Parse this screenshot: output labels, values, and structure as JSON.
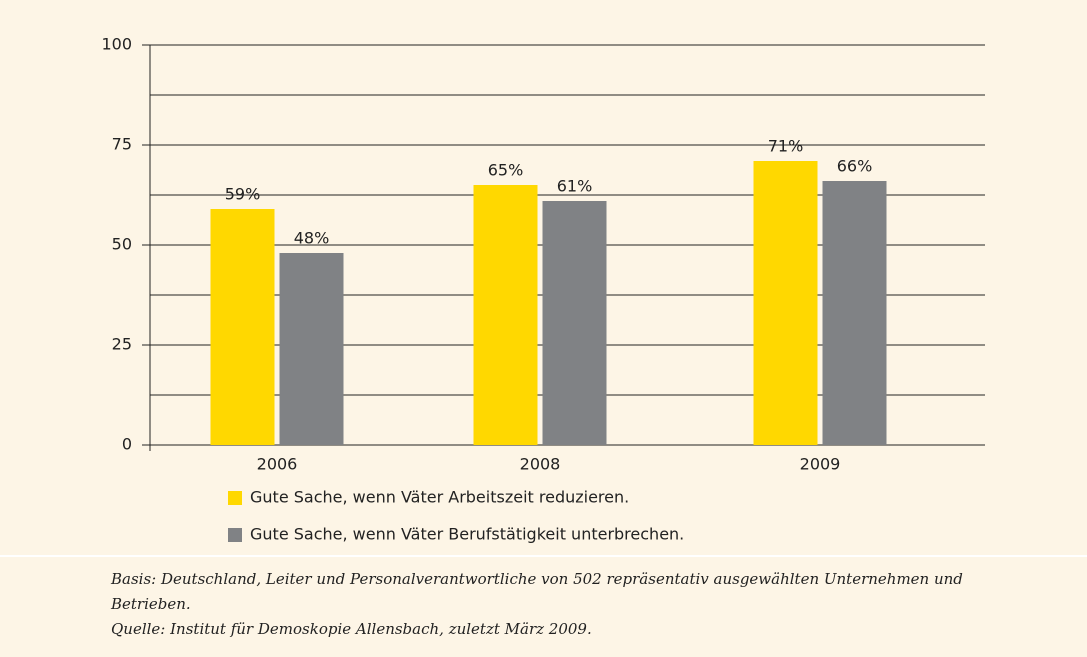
{
  "chart_data": {
    "type": "bar",
    "categories": [
      "2006",
      "2008",
      "2009"
    ],
    "series": [
      {
        "name": "Gute Sache, wenn Väter Arbeitszeit reduzieren.",
        "color": "#ffd800",
        "values": [
          59,
          65,
          71
        ],
        "value_labels": [
          "59%",
          "65%",
          "71%"
        ]
      },
      {
        "name": "Gute Sache, wenn Väter Berufstätigkeit unterbrechen.",
        "color": "#808285",
        "values": [
          48,
          61,
          66
        ],
        "value_labels": [
          "48%",
          "61%",
          "66%"
        ]
      }
    ],
    "ylim": [
      0,
      100
    ],
    "yticks": [
      0,
      25,
      50,
      75,
      100
    ],
    "minor_yticks": [
      12.5,
      37.5,
      62.5,
      87.5
    ],
    "grid": true,
    "notes": [
      "Basis: Deutschland, Leiter und Personalverantwortliche von 502 repräsentativ ausgewählten Unternehmen und",
      "Betrieben.",
      "Quelle: Institut für Demoskopie Allensbach, zuletzt März 2009."
    ]
  }
}
